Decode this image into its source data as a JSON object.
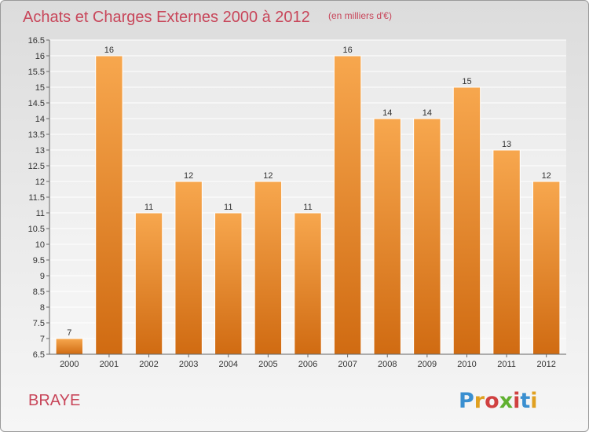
{
  "chart_data": {
    "type": "bar",
    "title": "Achats et Charges Externes 2000 à 2012",
    "unit_note": "(en milliers d'€)",
    "categories": [
      "2000",
      "2001",
      "2002",
      "2003",
      "2004",
      "2005",
      "2006",
      "2007",
      "2008",
      "2009",
      "2010",
      "2011",
      "2012"
    ],
    "values": [
      7,
      16,
      11,
      12,
      11,
      12,
      11,
      16,
      14,
      14,
      15,
      13,
      12
    ],
    "value_labels": [
      "7",
      "16",
      "11",
      "12",
      "11",
      "12",
      "11",
      "16",
      "14",
      "14",
      "15",
      "13",
      "12"
    ],
    "ylim": [
      6.5,
      16.5
    ],
    "yticks": [
      "6.5",
      "7",
      "7.5",
      "8",
      "8.5",
      "9",
      "9.5",
      "10",
      "10.5",
      "11",
      "11.5",
      "12",
      "12.5",
      "13",
      "13.5",
      "14",
      "14.5",
      "15",
      "15.5",
      "16",
      "16.5"
    ],
    "grid": true,
    "bar_color": "#f0922e",
    "title_color": "#c8465a"
  },
  "footer": {
    "commune": "BRAYE",
    "logo_letters": [
      "P",
      "r",
      "o",
      "x",
      "i",
      "t",
      "i"
    ],
    "logo_colors": [
      "#3a8fd0",
      "#e0a020",
      "#d04040",
      "#60b030",
      "#d04040",
      "#3a8fd0",
      "#e0a020"
    ]
  }
}
